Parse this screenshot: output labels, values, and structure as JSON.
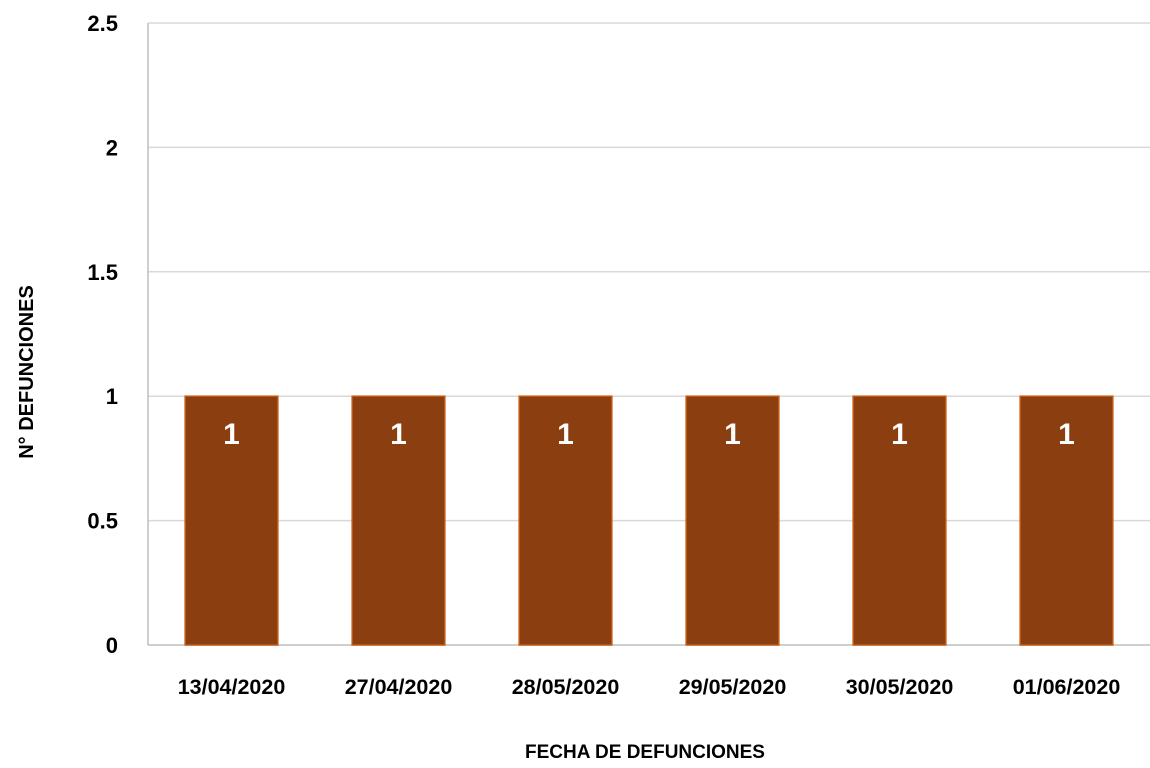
{
  "chart_data": {
    "type": "bar",
    "categories": [
      "13/04/2020",
      "27/04/2020",
      "28/05/2020",
      "29/05/2020",
      "30/05/2020",
      "01/06/2020"
    ],
    "values": [
      1,
      1,
      1,
      1,
      1,
      1
    ],
    "data_labels": [
      "1",
      "1",
      "1",
      "1",
      "1",
      "1"
    ],
    "title": "",
    "xlabel": "FECHA DE DEFUNCIONES",
    "ylabel": "N° DEFUNCIONES",
    "ylim": [
      0,
      2.5
    ],
    "yticks": [
      "0",
      "0.5",
      "1",
      "1.5",
      "2",
      "2.5"
    ],
    "grid": true,
    "legend": "none",
    "colors": {
      "bar_fill": "#8B3E0F",
      "bar_stroke": "#C55A11",
      "grid": "#D9D9D9",
      "axis": "#BFBFBF",
      "data_label": "#FFFFFF",
      "text": "#000000"
    }
  }
}
